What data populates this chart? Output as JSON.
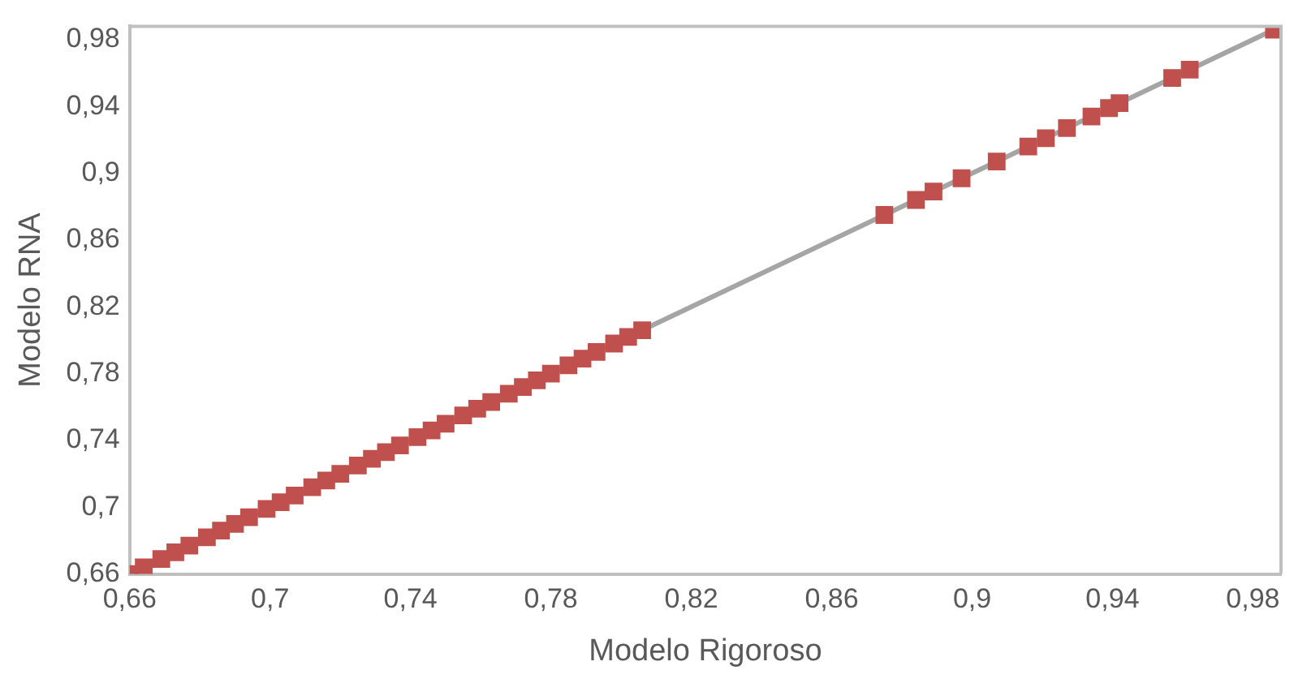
{
  "chart_data": {
    "type": "scatter",
    "xlabel": "Modelo Rigoroso",
    "ylabel": "Modelo RNA",
    "marker": "square",
    "grid": false,
    "legend": false,
    "xlim": [
      0.66,
      0.988
    ],
    "ylim": [
      0.66,
      0.988
    ],
    "xticks": [
      {
        "value": 0.66,
        "label": "0,66"
      },
      {
        "value": 0.7,
        "label": "0,7"
      },
      {
        "value": 0.74,
        "label": "0,74"
      },
      {
        "value": 0.78,
        "label": "0,78"
      },
      {
        "value": 0.82,
        "label": "0,82"
      },
      {
        "value": 0.86,
        "label": "0,86"
      },
      {
        "value": 0.9,
        "label": "0,9"
      },
      {
        "value": 0.94,
        "label": "0,94"
      },
      {
        "value": 0.98,
        "label": "0,98"
      }
    ],
    "yticks": [
      {
        "value": 0.66,
        "label": "0,66"
      },
      {
        "value": 0.7,
        "label": "0,7"
      },
      {
        "value": 0.74,
        "label": "0,74"
      },
      {
        "value": 0.78,
        "label": "0,78"
      },
      {
        "value": 0.82,
        "label": "0,82"
      },
      {
        "value": 0.86,
        "label": "0,86"
      },
      {
        "value": 0.9,
        "label": "0,9"
      },
      {
        "value": 0.94,
        "label": "0,94"
      },
      {
        "value": 0.98,
        "label": "0,98"
      }
    ],
    "series": [
      {
        "type": "line",
        "marker": "none",
        "color": "#a5a5a5",
        "x": [
          0.66,
          0.986
        ],
        "values": [
          0.66,
          0.986
        ]
      },
      {
        "color": "#c0504d",
        "x": [
          0.66,
          0.664,
          0.669,
          0.673,
          0.677,
          0.682,
          0.686,
          0.69,
          0.694,
          0.699,
          0.703,
          0.707,
          0.712,
          0.716,
          0.72,
          0.725,
          0.729,
          0.733,
          0.737,
          0.742,
          0.746,
          0.75,
          0.755,
          0.759,
          0.763,
          0.768,
          0.772,
          0.776,
          0.78,
          0.785,
          0.789,
          0.793,
          0.798,
          0.802,
          0.806,
          0.875,
          0.884,
          0.889,
          0.897,
          0.907,
          0.916,
          0.921,
          0.927,
          0.934,
          0.939,
          0.942,
          0.957,
          0.962,
          0.986
        ],
        "values": [
          0.66,
          0.664,
          0.669,
          0.673,
          0.677,
          0.682,
          0.686,
          0.69,
          0.694,
          0.699,
          0.703,
          0.707,
          0.712,
          0.716,
          0.72,
          0.725,
          0.729,
          0.733,
          0.737,
          0.742,
          0.746,
          0.75,
          0.755,
          0.759,
          0.763,
          0.768,
          0.772,
          0.776,
          0.78,
          0.785,
          0.789,
          0.793,
          0.798,
          0.802,
          0.806,
          0.875,
          0.884,
          0.889,
          0.897,
          0.907,
          0.916,
          0.921,
          0.927,
          0.934,
          0.939,
          0.942,
          0.957,
          0.962,
          0.986
        ]
      }
    ]
  }
}
